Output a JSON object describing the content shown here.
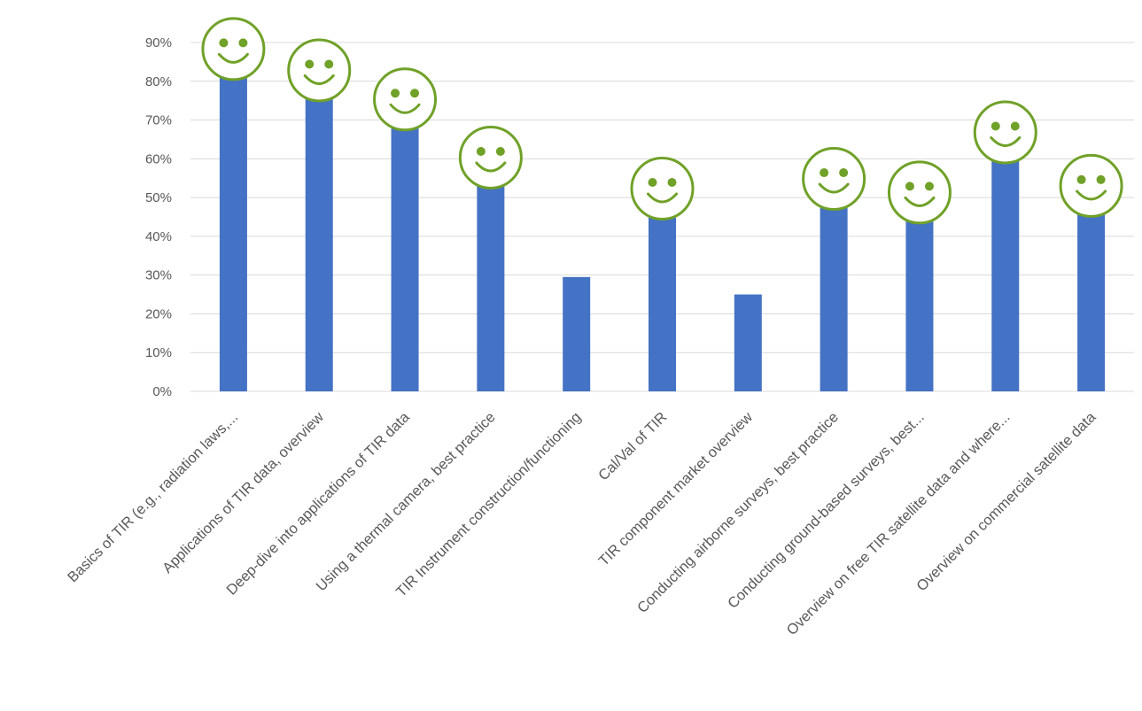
{
  "chart_data": {
    "type": "bar",
    "title": "",
    "xlabel": "",
    "ylabel": "",
    "ylim": [
      0,
      0.9
    ],
    "yticks": [
      0,
      0.1,
      0.2,
      0.3,
      0.4,
      0.5,
      0.6,
      0.7,
      0.8,
      0.9
    ],
    "ytick_labels": [
      "0%",
      "10%",
      "20%",
      "30%",
      "40%",
      "50%",
      "60%",
      "70%",
      "80%",
      "90%"
    ],
    "y_format": "percent",
    "grid": true,
    "legend": "none",
    "categories": [
      "Basics of TIR (e.g., radiation laws,...",
      "Applications of TIR data, overview",
      "Deep-dive into applications of TIR data",
      "Using a thermal camera, best practice",
      "TIR Instrument construction/functioning",
      "Cal/Val of TIR",
      "TIR component market overview",
      "Conducting airborne surveys, best practice",
      "Conducting ground-based surveys, best...",
      "Overview on free TIR satellite data and where...",
      "Overview on commercial satellite data"
    ],
    "values": [
      0.81,
      0.755,
      0.68,
      0.53,
      0.295,
      0.45,
      0.25,
      0.475,
      0.44,
      0.595,
      0.457
    ],
    "smiley": [
      true,
      true,
      true,
      true,
      false,
      true,
      false,
      true,
      true,
      true,
      true
    ],
    "colors": {
      "bar": "#4472C4",
      "grid": "#D9D9D9",
      "tick_text": "#595959",
      "smiley": "#70A128"
    },
    "annotation_icon": "smiley-face-icon"
  }
}
